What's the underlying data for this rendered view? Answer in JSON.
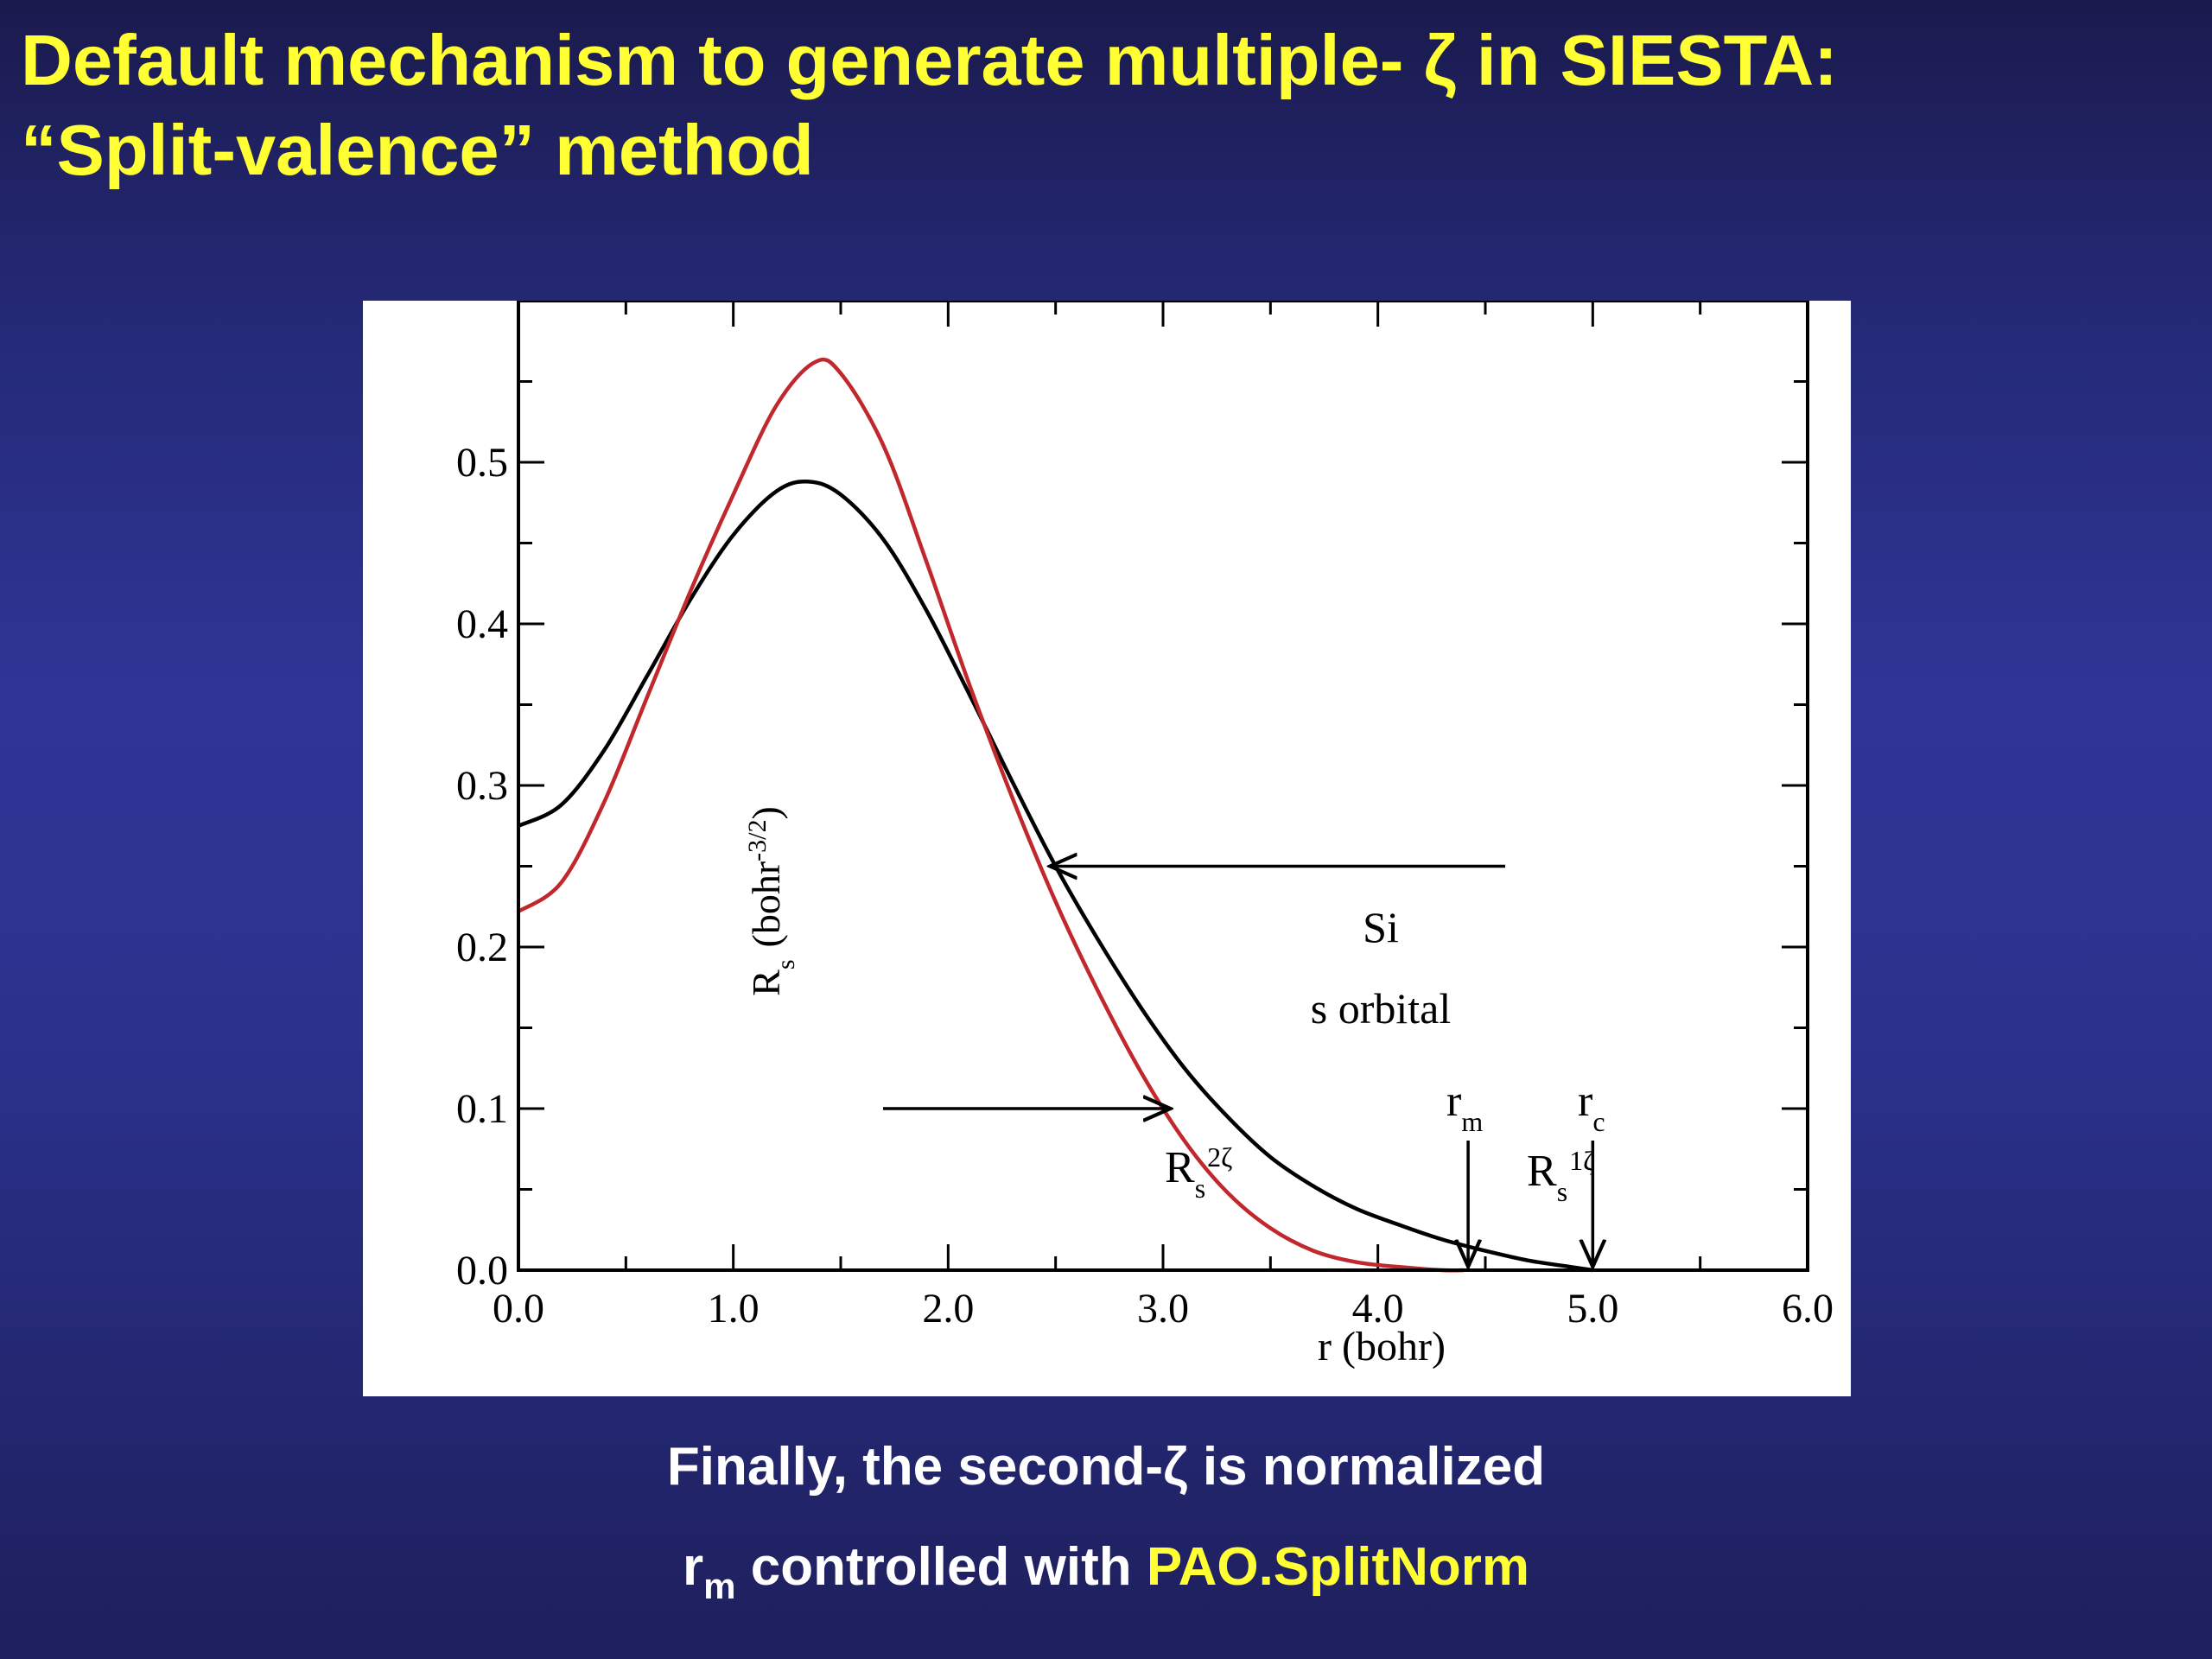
{
  "slide": {
    "title_line1": "Default mechanism to generate multiple- ζ in SIESTA:",
    "title_line2": "“Split-valence” method",
    "caption1": "Finally, the second-ζ is normalized",
    "caption2_prefix": "r",
    "caption2_sub": "m",
    "caption2_middle": " controlled with ",
    "caption2_highlight": "PAO.SplitNorm",
    "colors": {
      "title": "#ffff33",
      "caption": "#ffffff",
      "highlight": "#ffff33",
      "curve_1zeta": "#000000",
      "curve_2zeta": "#c0282d"
    }
  },
  "chart_data": {
    "type": "line",
    "xlabel": "r (bohr)",
    "ylabel_main": "R",
    "ylabel_sub": "s",
    "ylabel_unit_open": "(bohr",
    "ylabel_unit_sup": "-3/2",
    "ylabel_unit_close": ")",
    "xlim": [
      0.0,
      6.0
    ],
    "ylim": [
      0.0,
      0.6
    ],
    "x_ticks": [
      "0.0",
      "1.0",
      "2.0",
      "3.0",
      "4.0",
      "5.0",
      "6.0"
    ],
    "y_ticks": [
      "0.0",
      "0.1",
      "0.2",
      "0.3",
      "0.4",
      "0.5"
    ],
    "x_tick_values": [
      0,
      1,
      2,
      3,
      4,
      5,
      6
    ],
    "y_tick_values": [
      0,
      0.1,
      0.2,
      0.3,
      0.4,
      0.5
    ],
    "annotation_line1": "Si",
    "annotation_line2": "s orbital",
    "series": [
      {
        "label_main": "R",
        "label_sub": "s",
        "label_sup": "1ζ",
        "color": "#000000",
        "x": [
          0.0,
          0.2,
          0.4,
          0.6,
          0.8,
          1.0,
          1.2,
          1.35,
          1.5,
          1.7,
          1.9,
          2.1,
          2.3,
          2.5,
          2.7,
          2.9,
          3.1,
          3.3,
          3.5,
          3.7,
          3.9,
          4.1,
          4.3,
          4.5,
          4.7,
          4.9,
          5.0
        ],
        "y": [
          0.275,
          0.288,
          0.322,
          0.368,
          0.415,
          0.455,
          0.482,
          0.488,
          0.48,
          0.452,
          0.408,
          0.356,
          0.302,
          0.25,
          0.204,
          0.162,
          0.125,
          0.095,
          0.07,
          0.052,
          0.038,
          0.028,
          0.019,
          0.012,
          0.006,
          0.002,
          0.0
        ]
      },
      {
        "label_main": "R",
        "label_sub": "s",
        "label_sup": "2ζ",
        "color": "#c0282d",
        "x": [
          0.0,
          0.2,
          0.4,
          0.6,
          0.8,
          1.0,
          1.2,
          1.38,
          1.5,
          1.7,
          1.9,
          2.1,
          2.3,
          2.5,
          2.7,
          2.9,
          3.1,
          3.3,
          3.5,
          3.7,
          3.9,
          4.1,
          4.3,
          4.4
        ],
        "y": [
          0.222,
          0.24,
          0.29,
          0.355,
          0.42,
          0.48,
          0.535,
          0.562,
          0.555,
          0.51,
          0.438,
          0.362,
          0.292,
          0.228,
          0.172,
          0.122,
          0.08,
          0.048,
          0.026,
          0.012,
          0.005,
          0.002,
          0.0,
          0.0
        ]
      }
    ],
    "markers": [
      {
        "label_main": "r",
        "label_sub": "m",
        "x": 4.42
      },
      {
        "label_main": "r",
        "label_sub": "c",
        "x": 5.0
      }
    ],
    "label_arrows": [
      {
        "series": 0,
        "x": 2.45,
        "y": 0.25
      },
      {
        "series": 1,
        "x": 3.05,
        "y": 0.1
      }
    ]
  }
}
